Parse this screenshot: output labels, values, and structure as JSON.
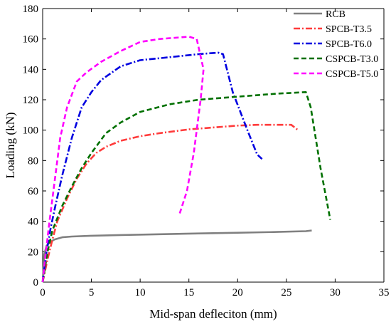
{
  "chart_data": {
    "type": "line",
    "title": "",
    "xlabel": "Mid-span defleciton (mm)",
    "ylabel": "Loading (kN)",
    "xlim": [
      0,
      35
    ],
    "ylim": [
      0,
      180
    ],
    "xticks": [
      0,
      5,
      10,
      15,
      20,
      25,
      30,
      35
    ],
    "yticks": [
      0,
      20,
      40,
      60,
      80,
      100,
      120,
      140,
      160,
      180
    ],
    "grid": false,
    "legend_position": "top-right",
    "series": [
      {
        "name": "RCB",
        "color": "#808080",
        "dash": "solid",
        "x": [
          0,
          0.15,
          0.4,
          0.8,
          1.2,
          2,
          3,
          5,
          8,
          12,
          16,
          20,
          24,
          27,
          27.6
        ],
        "y": [
          0,
          18,
          24,
          26.5,
          28,
          29.5,
          30,
          30.5,
          31,
          31.5,
          32,
          32.5,
          33,
          33.5,
          34
        ]
      },
      {
        "name": "SPCB-T3.5",
        "color": "#ff3b3b",
        "dash": "dashdot",
        "x": [
          0,
          0.5,
          1,
          1.5,
          2.5,
          3.5,
          4.5,
          5.5,
          6.5,
          8,
          10,
          12,
          15,
          18,
          20,
          22,
          24,
          25.5,
          26.2
        ],
        "y": [
          0,
          15,
          28,
          40,
          55,
          68,
          78,
          85,
          89,
          93,
          96,
          98,
          100.5,
          102,
          103,
          103.5,
          103.5,
          103.5,
          100
        ]
      },
      {
        "name": "SPCB-T6.0",
        "color": "#0000e0",
        "dash": "dashdot",
        "x": [
          0,
          0.4,
          0.8,
          1.3,
          2,
          3,
          4,
          5,
          6,
          8,
          10,
          13,
          16,
          18,
          18.5,
          19.5,
          21,
          22,
          22.5
        ],
        "y": [
          0,
          20,
          35,
          50,
          70,
          95,
          115,
          125,
          133,
          142,
          146,
          148,
          150,
          151,
          150,
          125,
          100,
          84,
          81
        ]
      },
      {
        "name": "CSPCB-T3.0",
        "color": "#007000",
        "dash": "dashed",
        "x": [
          0,
          0.5,
          1,
          2,
          3,
          4,
          5,
          6.5,
          8,
          10,
          13,
          16,
          20,
          24,
          27,
          27.5,
          28.5,
          29.5
        ],
        "y": [
          0,
          20,
          34,
          50,
          63,
          75,
          85,
          98,
          105,
          112,
          117,
          120,
          122,
          124,
          125,
          115,
          75,
          41
        ]
      },
      {
        "name": "CSPCB-T5.0",
        "color": "#ff00ff",
        "dash": "dashed",
        "x": [
          0,
          0.3,
          0.7,
          1.2,
          1.8,
          2.5,
          3.5,
          4.5,
          6,
          8,
          10,
          12,
          15,
          15.8,
          16.5,
          16.2,
          15.5,
          14.8,
          14
        ],
        "y": [
          0,
          18,
          40,
          65,
          95,
          115,
          132,
          138,
          145,
          152,
          158,
          160,
          161.5,
          160,
          140,
          120,
          85,
          60,
          44
        ]
      }
    ]
  }
}
